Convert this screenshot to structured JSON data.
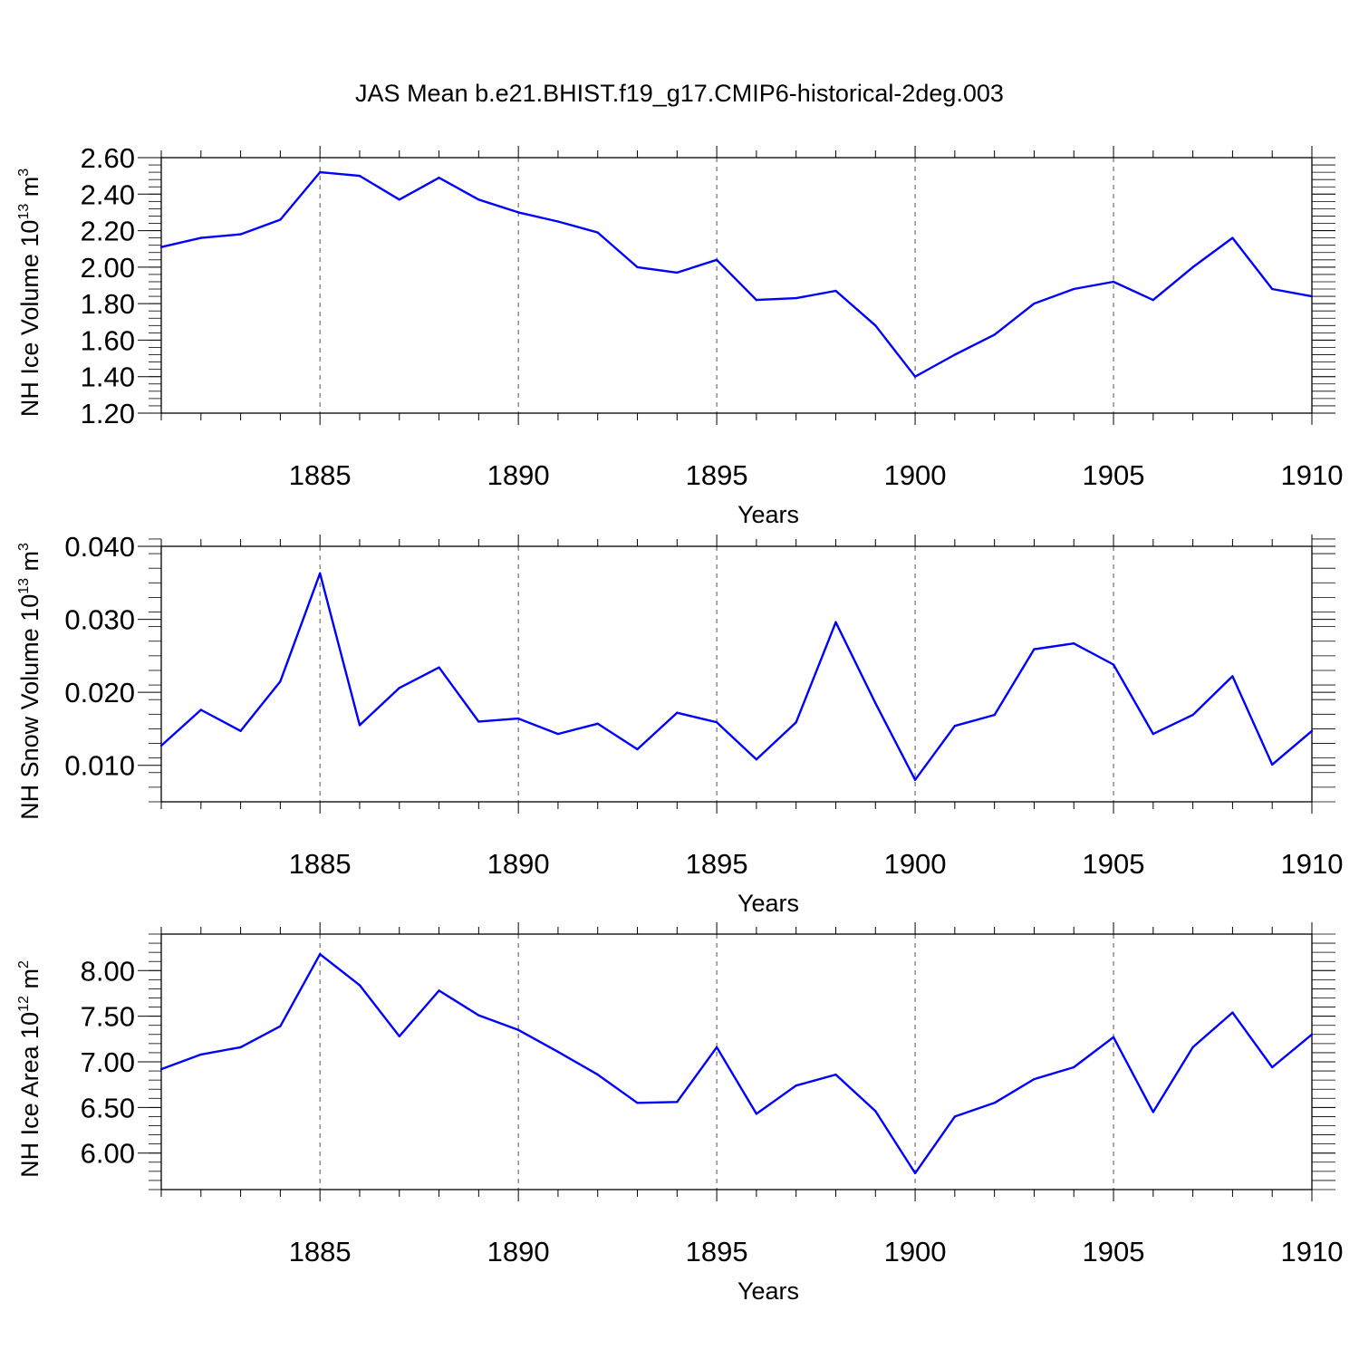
{
  "title": "JAS Mean b.e21.BHIST.f19_g17.CMIP6-historical-2deg.003",
  "line_color": "#0000ff",
  "chart_data": [
    {
      "type": "line",
      "ylabel_parts": [
        "NH Ice Volume 10",
        "13",
        " m",
        "3"
      ],
      "xlabel": "Years",
      "xlim": [
        1881,
        1910
      ],
      "ylim": [
        1.2,
        2.6
      ],
      "x_ticks": [
        1885,
        1890,
        1895,
        1900,
        1905,
        1910
      ],
      "y_ticks": [
        1.2,
        1.4,
        1.6,
        1.8,
        2.0,
        2.2,
        2.4,
        2.6
      ],
      "y_tick_labels": [
        "1.20",
        "1.40",
        "1.60",
        "1.80",
        "2.00",
        "2.20",
        "2.40",
        "2.60"
      ],
      "x_grid": [
        1885,
        1890,
        1895,
        1900,
        1905
      ],
      "series": [
        {
          "x": [
            1881,
            1882,
            1883,
            1884,
            1885,
            1886,
            1887,
            1888,
            1889,
            1890,
            1891,
            1892,
            1893,
            1894,
            1895,
            1896,
            1897,
            1898,
            1899,
            1900,
            1901,
            1902,
            1903,
            1904,
            1905,
            1906,
            1907,
            1908,
            1909,
            1910
          ],
          "values": [
            2.11,
            2.16,
            2.18,
            2.26,
            2.52,
            2.5,
            2.37,
            2.49,
            2.37,
            2.3,
            2.25,
            2.19,
            2.0,
            1.97,
            2.04,
            1.82,
            1.83,
            1.87,
            1.68,
            1.4,
            1.52,
            1.63,
            1.8,
            1.88,
            1.92,
            1.82,
            2.0,
            2.16,
            1.88,
            1.84
          ]
        }
      ]
    },
    {
      "type": "line",
      "ylabel_parts": [
        "NH Snow Volume 10",
        "13",
        " m",
        "3"
      ],
      "xlabel": "Years",
      "xlim": [
        1881,
        1910
      ],
      "ylim": [
        0.005,
        0.04
      ],
      "x_ticks": [
        1885,
        1890,
        1895,
        1900,
        1905,
        1910
      ],
      "y_ticks": [
        0.01,
        0.02,
        0.03,
        0.04
      ],
      "y_tick_labels": [
        "0.010",
        "0.020",
        "0.030",
        "0.040"
      ],
      "x_grid": [
        1885,
        1890,
        1895,
        1900,
        1905
      ],
      "series": [
        {
          "x": [
            1881,
            1882,
            1883,
            1884,
            1885,
            1886,
            1887,
            1888,
            1889,
            1890,
            1891,
            1892,
            1893,
            1894,
            1895,
            1896,
            1897,
            1898,
            1899,
            1900,
            1901,
            1902,
            1903,
            1904,
            1905,
            1906,
            1907,
            1908,
            1909,
            1910
          ],
          "values": [
            0.0127,
            0.0176,
            0.0147,
            0.0215,
            0.0363,
            0.0155,
            0.0206,
            0.0234,
            0.016,
            0.0164,
            0.0143,
            0.0157,
            0.0122,
            0.0172,
            0.0159,
            0.0108,
            0.0159,
            0.0296,
            0.0185,
            0.008,
            0.0154,
            0.0169,
            0.0259,
            0.0267,
            0.0238,
            0.0143,
            0.0169,
            0.0222,
            0.0101,
            0.0147
          ]
        }
      ]
    },
    {
      "type": "line",
      "ylabel_parts": [
        "NH Ice Area 10",
        "12",
        " m",
        "2"
      ],
      "xlabel": "Years",
      "xlim": [
        1881,
        1910
      ],
      "ylim": [
        5.6,
        8.4
      ],
      "x_ticks": [
        1885,
        1890,
        1895,
        1900,
        1905,
        1910
      ],
      "y_ticks": [
        6.0,
        6.5,
        7.0,
        7.5,
        8.0
      ],
      "y_tick_labels": [
        "6.00",
        "6.50",
        "7.00",
        "7.50",
        "8.00"
      ],
      "x_grid": [
        1885,
        1890,
        1895,
        1900,
        1905
      ],
      "series": [
        {
          "x": [
            1881,
            1882,
            1883,
            1884,
            1885,
            1886,
            1887,
            1888,
            1889,
            1890,
            1891,
            1892,
            1893,
            1894,
            1895,
            1896,
            1897,
            1898,
            1899,
            1900,
            1901,
            1902,
            1903,
            1904,
            1905,
            1906,
            1907,
            1908,
            1909,
            1910
          ],
          "values": [
            6.92,
            7.08,
            7.16,
            7.39,
            8.18,
            7.84,
            7.28,
            7.78,
            7.51,
            7.35,
            7.11,
            6.86,
            6.55,
            6.56,
            7.16,
            6.43,
            6.74,
            6.86,
            6.46,
            5.78,
            6.4,
            6.55,
            6.81,
            6.94,
            7.27,
            6.45,
            7.16,
            7.54,
            6.94,
            7.3
          ]
        }
      ]
    }
  ]
}
